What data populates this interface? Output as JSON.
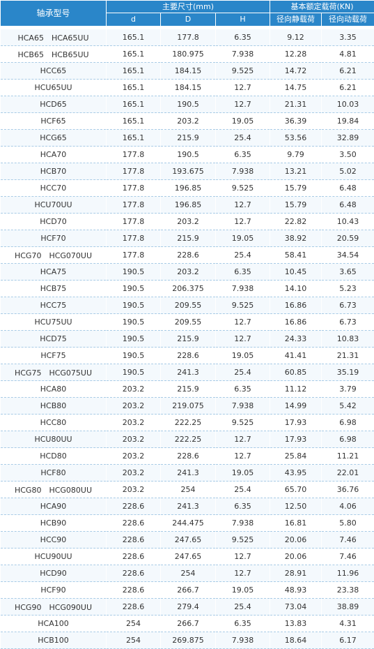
{
  "header": {
    "model": "轴承型号",
    "dims_group": "主要尺寸(mm)",
    "load_group": "基本额定载荷(KN)",
    "d": "d",
    "D": "D",
    "H": "H",
    "static": "径向静载荷",
    "dynamic": "径向动载荷"
  },
  "rows": [
    [
      "HCA65　HCA65UU",
      "165.1",
      "177.8",
      "6.35",
      "9.12",
      "3.35"
    ],
    [
      "HCB65　HCB65UU",
      "165.1",
      "180.975",
      "7.938",
      "12.28",
      "4.81"
    ],
    [
      "HCC65",
      "165.1",
      "184.15",
      "9.525",
      "14.72",
      "6.21"
    ],
    [
      "HCU65UU",
      "165.1",
      "184.15",
      "12.7",
      "14.75",
      "6.21"
    ],
    [
      "HCD65",
      "165.1",
      "190.5",
      "12.7",
      "21.31",
      "10.03"
    ],
    [
      "HCF65",
      "165.1",
      "203.2",
      "19.05",
      "36.39",
      "19.84"
    ],
    [
      "HCG65",
      "165.1",
      "215.9",
      "25.4",
      "53.56",
      "32.89"
    ],
    [
      "HCA70",
      "177.8",
      "190.5",
      "6.35",
      "9.79",
      "3.50"
    ],
    [
      "HCB70",
      "177.8",
      "193.675",
      "7.938",
      "13.21",
      "5.02"
    ],
    [
      "HCC70",
      "177.8",
      "196.85",
      "9.525",
      "15.79",
      "6.48"
    ],
    [
      "HCU70UU",
      "177.8",
      "196.85",
      "12.7",
      "15.79",
      "6.48"
    ],
    [
      "HCD70",
      "177.8",
      "203.2",
      "12.7",
      "22.82",
      "10.43"
    ],
    [
      "HCF70",
      "177.8",
      "215.9",
      "19.05",
      "38.92",
      "20.59"
    ],
    [
      "HCG70　HCG070UU",
      "177.8",
      "228.6",
      "25.4",
      "58.41",
      "34.54"
    ],
    [
      "HCA75",
      "190.5",
      "203.2",
      "6.35",
      "10.45",
      "3.65"
    ],
    [
      "HCB75",
      "190.5",
      "206.375",
      "7.938",
      "14.10",
      "5.23"
    ],
    [
      "HCC75",
      "190.5",
      "209.55",
      "9.525",
      "16.86",
      "6.73"
    ],
    [
      "HCU75UU",
      "190.5",
      "209.55",
      "12.7",
      "16.86",
      "6.73"
    ],
    [
      "HCD75",
      "190.5",
      "215.9",
      "12.7",
      "24.33",
      "10.83"
    ],
    [
      "HCF75",
      "190.5",
      "228.6",
      "19.05",
      "41.41",
      "21.31"
    ],
    [
      "HCG75　HCG075UU",
      "190.5",
      "241.3",
      "25.4",
      "60.85",
      "35.19"
    ],
    [
      "HCA80",
      "203.2",
      "215.9",
      "6.35",
      "11.12",
      "3.79"
    ],
    [
      "HCB80",
      "203.2",
      "219.075",
      "7.938",
      "14.99",
      "5.42"
    ],
    [
      "HCC80",
      "203.2",
      "222.25",
      "9.525",
      "17.93",
      "6.98"
    ],
    [
      "HCU80UU",
      "203.2",
      "222.25",
      "12.7",
      "17.93",
      "6.98"
    ],
    [
      "HCD80",
      "203.2",
      "228.6",
      "12.7",
      "25.84",
      "11.21"
    ],
    [
      "HCF80",
      "203.2",
      "241.3",
      "19.05",
      "43.95",
      "22.01"
    ],
    [
      "HCG80　HCG080UU",
      "203.2",
      "254",
      "25.4",
      "65.70",
      "36.76"
    ],
    [
      "HCA90",
      "228.6",
      "241.3",
      "6.35",
      "12.50",
      "4.06"
    ],
    [
      "HCB90",
      "228.6",
      "244.475",
      "7.938",
      "16.81",
      "5.80"
    ],
    [
      "HCC90",
      "228.6",
      "247.65",
      "9.525",
      "20.06",
      "7.46"
    ],
    [
      "HCU90UU",
      "228.6",
      "247.65",
      "12.7",
      "20.06",
      "7.46"
    ],
    [
      "HCD90",
      "228.6",
      "254",
      "12.7",
      "28.91",
      "11.96"
    ],
    [
      "HCF90",
      "228.6",
      "266.7",
      "19.05",
      "48.93",
      "23.38"
    ],
    [
      "HCG90　HCG090UU",
      "228.6",
      "279.4",
      "25.4",
      "73.04",
      "38.89"
    ],
    [
      "HCA100",
      "254",
      "266.7",
      "6.35",
      "13.83",
      "4.31"
    ],
    [
      "HCB100",
      "254",
      "269.875",
      "7.938",
      "18.64",
      "6.17"
    ]
  ]
}
